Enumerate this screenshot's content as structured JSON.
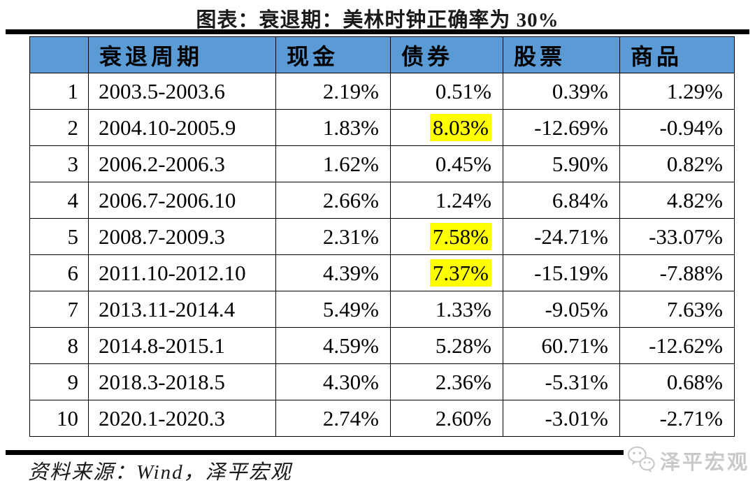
{
  "title": "图表：衰退期：美林时钟正确率为 30%",
  "chart_data": {
    "type": "table",
    "title": "图表：衰退期：美林时钟正确率为 30%",
    "columns": [
      "",
      "衰退周期",
      "现金",
      "债券",
      "股票",
      "商品"
    ],
    "rows": [
      [
        "1",
        "2003.5-2003.6",
        "2.19%",
        "0.51%",
        "0.39%",
        "1.29%"
      ],
      [
        "2",
        "2004.10-2005.9",
        "1.83%",
        "8.03%",
        "-12.69%",
        "-0.94%"
      ],
      [
        "3",
        "2006.2-2006.3",
        "1.62%",
        "0.45%",
        "5.90%",
        "0.82%"
      ],
      [
        "4",
        "2006.7-2006.10",
        "2.66%",
        "1.24%",
        "6.84%",
        "4.82%"
      ],
      [
        "5",
        "2008.7-2009.3",
        "2.31%",
        "7.58%",
        "-24.71%",
        "-33.07%"
      ],
      [
        "6",
        "2011.10-2012.10",
        "4.39%",
        "7.37%",
        "-15.19%",
        "-7.88%"
      ],
      [
        "7",
        "2013.11-2014.4",
        "5.49%",
        "1.33%",
        "-9.05%",
        "7.63%"
      ],
      [
        "8",
        "2014.8-2015.1",
        "4.59%",
        "5.28%",
        "60.71%",
        "-12.62%"
      ],
      [
        "9",
        "2018.3-2018.5",
        "4.30%",
        "2.36%",
        "-5.31%",
        "0.68%"
      ],
      [
        "10",
        "2020.1-2020.3",
        "2.74%",
        "2.60%",
        "-3.01%",
        "-2.71%"
      ]
    ],
    "highlighted_cells": [
      [
        1,
        3
      ],
      [
        4,
        3
      ],
      [
        5,
        3
      ]
    ],
    "values_unit": "%",
    "legend_position": "none",
    "grid": true
  },
  "footer": {
    "source": "资料来源：Wind，泽平宏观"
  },
  "watermark": {
    "label": "泽平宏观",
    "icon": "wechat-icon"
  },
  "colors": {
    "header_bg": "#5B9BD5",
    "header_text": "#000000",
    "highlight": "#FFFF00",
    "rule": "#000000",
    "watermark": "#C9C9C9",
    "body_text": "#000000"
  }
}
